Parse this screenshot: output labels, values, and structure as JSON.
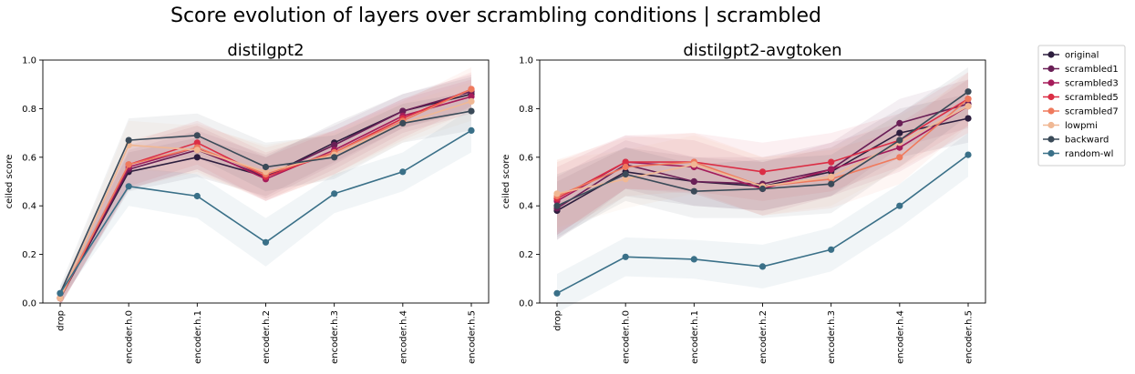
{
  "suptitle": "Score evolution of layers over scrambling conditions | scrambled",
  "colors": {
    "original": "#2d1e3e",
    "scrambled1": "#6a1f56",
    "scrambled3": "#a51c5a",
    "scrambled5": "#db2e45",
    "scrambled7": "#ef7a5d",
    "lowpmi": "#f0b894",
    "backward": "#3a4a58",
    "random-wl": "#3a7088"
  },
  "legend": {
    "placement": "outside-right",
    "entries": [
      "original",
      "scrambled1",
      "scrambled3",
      "scrambled5",
      "scrambled7",
      "lowpmi",
      "backward",
      "random-wl"
    ]
  },
  "chart_data": [
    {
      "type": "line",
      "title": "distilgpt2",
      "xlabel": "",
      "ylabel": "ceiled score",
      "ylim": [
        0,
        1.0
      ],
      "yticks": [
        "0.0",
        "0.2",
        "0.4",
        "0.6",
        "0.8",
        "1.0"
      ],
      "grid": false,
      "categories": [
        "drop",
        "encoder.h.0",
        "encoder.h.1",
        "encoder.h.2",
        "encoder.h.3",
        "encoder.h.4",
        "encoder.h.5"
      ],
      "series": [
        {
          "name": "original",
          "values": [
            0.02,
            0.54,
            0.6,
            0.52,
            0.66,
            0.79,
            0.86
          ],
          "err": [
            0.03,
            0.08,
            0.08,
            0.08,
            0.08,
            0.07,
            0.07
          ]
        },
        {
          "name": "scrambled1",
          "values": [
            0.02,
            0.55,
            0.63,
            0.52,
            0.65,
            0.79,
            0.87
          ],
          "err": [
            0.03,
            0.08,
            0.08,
            0.09,
            0.08,
            0.07,
            0.07
          ]
        },
        {
          "name": "scrambled3",
          "values": [
            0.02,
            0.56,
            0.64,
            0.51,
            0.63,
            0.77,
            0.85
          ],
          "err": [
            0.03,
            0.09,
            0.09,
            0.09,
            0.08,
            0.07,
            0.07
          ]
        },
        {
          "name": "scrambled5",
          "values": [
            0.02,
            0.57,
            0.66,
            0.52,
            0.62,
            0.76,
            0.88
          ],
          "err": [
            0.03,
            0.09,
            0.09,
            0.1,
            0.09,
            0.08,
            0.07
          ]
        },
        {
          "name": "scrambled7",
          "values": [
            0.02,
            0.57,
            0.64,
            0.53,
            0.62,
            0.75,
            0.88
          ],
          "err": [
            0.03,
            0.1,
            0.1,
            0.11,
            0.09,
            0.08,
            0.09
          ]
        },
        {
          "name": "lowpmi",
          "values": [
            0.02,
            0.65,
            0.63,
            0.54,
            0.61,
            0.74,
            0.83
          ],
          "err": [
            0.03,
            0.1,
            0.1,
            0.11,
            0.09,
            0.08,
            0.08
          ]
        },
        {
          "name": "backward",
          "values": [
            0.04,
            0.67,
            0.69,
            0.56,
            0.6,
            0.74,
            0.79
          ],
          "err": [
            0.03,
            0.09,
            0.09,
            0.1,
            0.09,
            0.08,
            0.08
          ]
        },
        {
          "name": "random-wl",
          "values": [
            0.04,
            0.48,
            0.44,
            0.25,
            0.45,
            0.54,
            0.71
          ],
          "err": [
            0.03,
            0.08,
            0.09,
            0.1,
            0.08,
            0.08,
            0.09
          ]
        }
      ]
    },
    {
      "type": "line",
      "title": "distilgpt2-avgtoken",
      "xlabel": "",
      "ylabel": "ceiled score",
      "ylim": [
        0,
        1.0
      ],
      "yticks": [
        "0.0",
        "0.2",
        "0.4",
        "0.6",
        "0.8",
        "1.0"
      ],
      "grid": false,
      "categories": [
        "drop",
        "encoder.h.0",
        "encoder.h.1",
        "encoder.h.2",
        "encoder.h.3",
        "encoder.h.4",
        "encoder.h.5"
      ],
      "series": [
        {
          "name": "original",
          "values": [
            0.38,
            0.54,
            0.5,
            0.48,
            0.54,
            0.7,
            0.76
          ],
          "err": [
            0.12,
            0.1,
            0.1,
            0.1,
            0.1,
            0.1,
            0.1
          ]
        },
        {
          "name": "scrambled1",
          "values": [
            0.39,
            0.57,
            0.5,
            0.49,
            0.55,
            0.74,
            0.82
          ],
          "err": [
            0.13,
            0.1,
            0.1,
            0.11,
            0.11,
            0.1,
            0.1
          ]
        },
        {
          "name": "scrambled3",
          "values": [
            0.42,
            0.58,
            0.56,
            0.47,
            0.55,
            0.64,
            0.81
          ],
          "err": [
            0.14,
            0.11,
            0.11,
            0.11,
            0.11,
            0.1,
            0.11
          ]
        },
        {
          "name": "scrambled5",
          "values": [
            0.43,
            0.58,
            0.58,
            0.54,
            0.58,
            0.67,
            0.84
          ],
          "err": [
            0.15,
            0.11,
            0.12,
            0.12,
            0.12,
            0.11,
            0.11
          ]
        },
        {
          "name": "scrambled7",
          "values": [
            0.44,
            0.56,
            0.58,
            0.48,
            0.51,
            0.6,
            0.84
          ],
          "err": [
            0.15,
            0.12,
            0.12,
            0.12,
            0.12,
            0.11,
            0.11
          ]
        },
        {
          "name": "lowpmi",
          "values": [
            0.45,
            0.51,
            0.57,
            0.48,
            0.52,
            0.66,
            0.81
          ],
          "err": [
            0.14,
            0.12,
            0.12,
            0.12,
            0.12,
            0.11,
            0.11
          ]
        },
        {
          "name": "backward",
          "values": [
            0.4,
            0.53,
            0.46,
            0.47,
            0.49,
            0.67,
            0.87
          ],
          "err": [
            0.13,
            0.11,
            0.11,
            0.12,
            0.12,
            0.11,
            0.1
          ]
        },
        {
          "name": "random-wl",
          "values": [
            0.04,
            0.19,
            0.18,
            0.15,
            0.22,
            0.4,
            0.61
          ],
          "err": [
            0.08,
            0.08,
            0.08,
            0.09,
            0.09,
            0.09,
            0.09
          ]
        }
      ]
    }
  ]
}
